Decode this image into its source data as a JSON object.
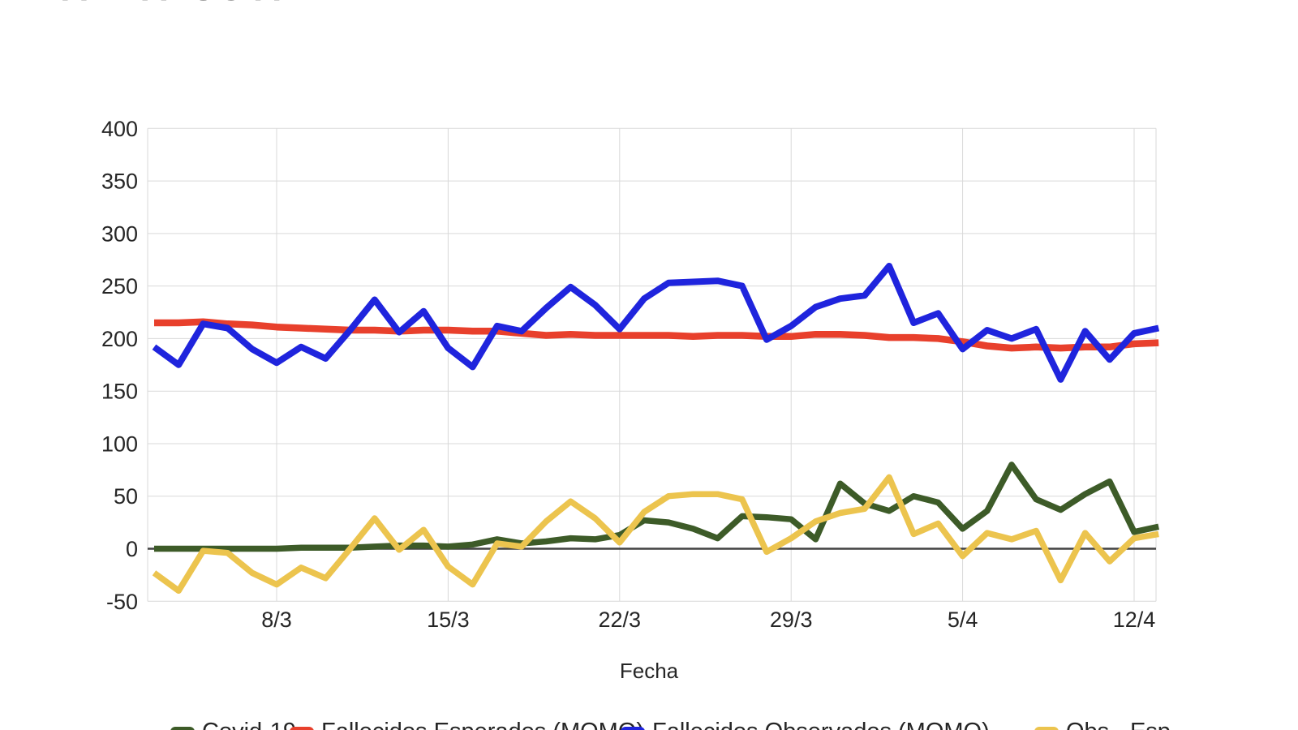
{
  "title": "ANDALUCÍA",
  "x_axis": {
    "label": "Fecha",
    "ticks": [
      "8/3",
      "15/3",
      "22/3",
      "29/3",
      "5/4",
      "12/4"
    ]
  },
  "y_axis": {
    "ticks": [
      400,
      350,
      300,
      250,
      200,
      150,
      100,
      50,
      0,
      -50
    ]
  },
  "colors": {
    "covid": "#3d5b28",
    "esperados": "#e8402c",
    "observados": "#1f24dd",
    "obs_esp": "#ecc44e",
    "grid": "#d9d9d9",
    "zero_line": "#424242",
    "text": "#262626",
    "title_text": "#3f3f3f"
  },
  "legend": [
    {
      "label": "Covid-19",
      "color": "#3d5b28"
    },
    {
      "label": "Fallecidos Esperados (MOMO)",
      "color": "#e8402c"
    },
    {
      "label": "Fallecidos Observados (MOMO)",
      "color": "#1f24dd"
    },
    {
      "label": "Obs - Esp",
      "color": "#ecc44e"
    }
  ],
  "chart_data": {
    "type": "line",
    "title": "ANDALUCÍA",
    "xlabel": "Fecha",
    "ylabel": "",
    "ylim": [
      -50,
      400
    ],
    "grid": true,
    "legend_position": "bottom",
    "x": [
      "3/3",
      "4/3",
      "5/3",
      "6/3",
      "7/3",
      "8/3",
      "9/3",
      "10/3",
      "11/3",
      "12/3",
      "13/3",
      "14/3",
      "15/3",
      "16/3",
      "17/3",
      "18/3",
      "19/3",
      "20/3",
      "21/3",
      "22/3",
      "23/3",
      "24/3",
      "25/3",
      "26/3",
      "27/3",
      "28/3",
      "29/3",
      "30/3",
      "31/3",
      "1/4",
      "2/4",
      "3/4",
      "4/4",
      "5/4",
      "6/4",
      "7/4",
      "8/4",
      "9/4",
      "10/4",
      "11/4",
      "12/4",
      "13/4"
    ],
    "series": [
      {
        "name": "Covid-19",
        "color": "#3d5b28",
        "values": [
          0,
          0,
          0,
          0,
          0,
          0,
          1,
          1,
          1,
          2,
          3,
          3,
          2,
          4,
          9,
          5,
          7,
          10,
          9,
          13,
          27,
          25,
          19,
          10,
          31,
          30,
          28,
          9,
          62,
          43,
          36,
          50,
          44,
          19,
          36,
          80,
          47,
          37,
          52,
          64,
          16,
          21
        ]
      },
      {
        "name": "Fallecidos Esperados (MOMO)",
        "color": "#e8402c",
        "values": [
          215,
          215,
          216,
          214,
          213,
          211,
          210,
          209,
          208,
          208,
          207,
          208,
          208,
          207,
          207,
          205,
          203,
          204,
          203,
          203,
          203,
          203,
          202,
          203,
          203,
          202,
          202,
          204,
          204,
          203,
          201,
          201,
          200,
          197,
          193,
          191,
          192,
          191,
          192,
          192,
          195,
          196
        ]
      },
      {
        "name": "Fallecidos Observados (MOMO)",
        "color": "#1f24dd",
        "values": [
          192,
          175,
          214,
          210,
          190,
          177,
          192,
          181,
          208,
          237,
          206,
          226,
          191,
          173,
          212,
          207,
          229,
          249,
          232,
          209,
          238,
          253,
          254,
          255,
          250,
          199,
          212,
          230,
          238,
          241,
          269,
          215,
          224,
          190,
          208,
          200,
          209,
          161,
          207,
          180,
          205,
          210
        ]
      },
      {
        "name": "Obs - Esp",
        "color": "#ecc44e",
        "values": [
          -23,
          -40,
          -2,
          -4,
          -23,
          -34,
          -18,
          -28,
          0,
          29,
          -1,
          18,
          -17,
          -34,
          5,
          2,
          26,
          45,
          29,
          6,
          35,
          50,
          52,
          52,
          47,
          -3,
          10,
          26,
          34,
          38,
          68,
          14,
          24,
          -7,
          15,
          9,
          17,
          -30,
          15,
          -12,
          10,
          14
        ]
      }
    ]
  }
}
